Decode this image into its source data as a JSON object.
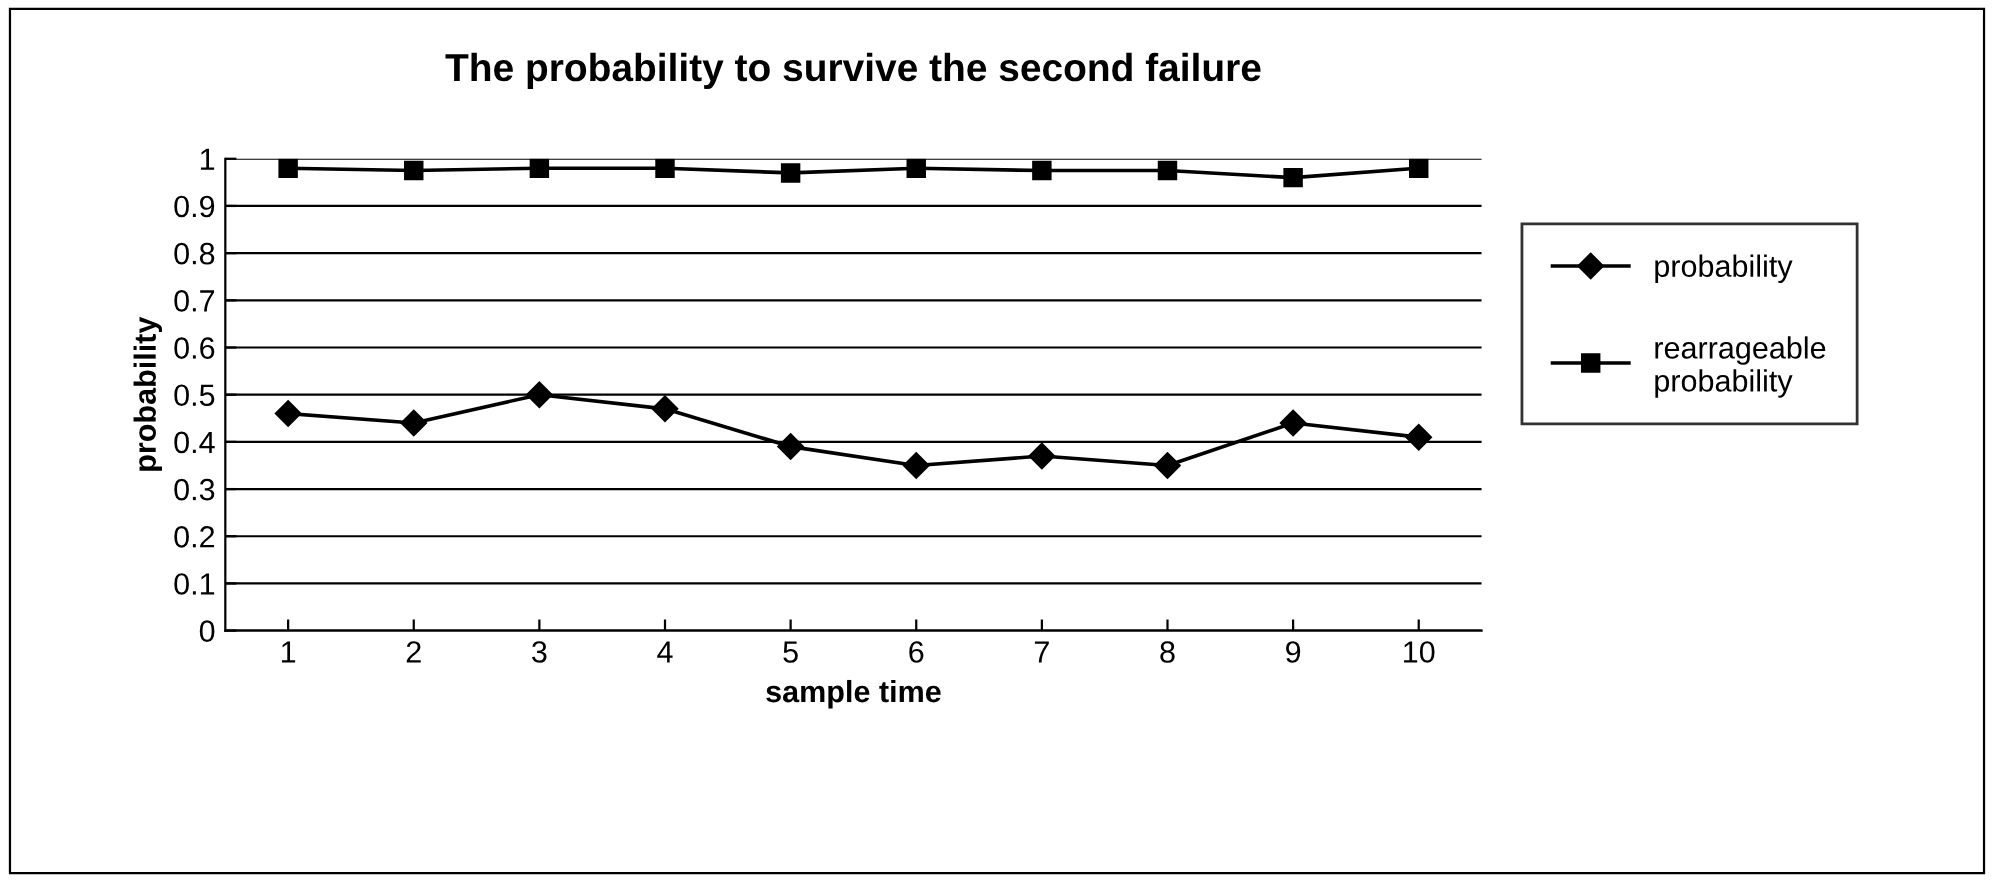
{
  "chart_data": {
    "type": "line",
    "title": "The probability to survive the second failure",
    "xlabel": "sample time",
    "ylabel": "probability",
    "categories": [
      "1",
      "2",
      "3",
      "4",
      "5",
      "6",
      "7",
      "8",
      "9",
      "10"
    ],
    "series": [
      {
        "name": "probability",
        "color": "#000000",
        "marker": "diamond",
        "values": [
          0.46,
          0.44,
          0.5,
          0.47,
          0.39,
          0.35,
          0.37,
          0.35,
          0.44,
          0.41
        ]
      },
      {
        "name": "rearrageable probability",
        "color": "#000000",
        "marker": "square",
        "values": [
          0.98,
          0.975,
          0.98,
          0.98,
          0.97,
          0.98,
          0.975,
          0.975,
          0.96,
          0.98
        ]
      }
    ],
    "ylim": [
      0,
      1
    ],
    "yticks": [
      0,
      0.1,
      0.2,
      0.3,
      0.4,
      0.5,
      0.6,
      0.7,
      0.8,
      0.9,
      1
    ],
    "grid": "y",
    "legend": "right",
    "line_style": "solid"
  }
}
